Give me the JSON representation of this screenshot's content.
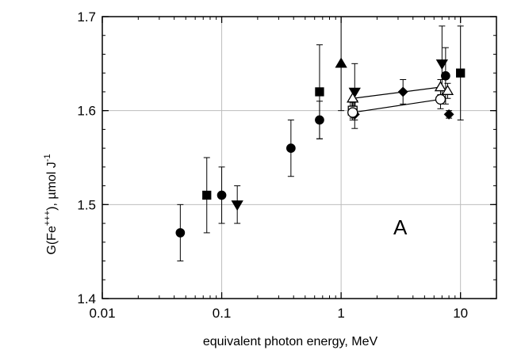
{
  "chart_data": {
    "type": "scatter",
    "title": "",
    "panel_label": "A",
    "xlabel": "equivalent photon energy,  MeV",
    "ylabel": {
      "prefix": "G(Fe",
      "sup": "+++",
      "mid": "), µmol J",
      "sup2": "-1"
    },
    "x_scale": "log",
    "xlim": [
      0.01,
      20
    ],
    "ylim": [
      1.4,
      1.7
    ],
    "x_ticks": [
      0.01,
      0.1,
      1,
      10
    ],
    "x_tick_labels": [
      "0.01",
      "0.1",
      "1",
      "10"
    ],
    "y_ticks": [
      1.4,
      1.5,
      1.6,
      1.7
    ],
    "y_tick_labels": [
      "1.4",
      "1.5",
      "1.6",
      "1.7"
    ],
    "grid": true,
    "series": [
      {
        "marker": "circle-filled",
        "points": [
          {
            "x": 0.045,
            "y": 1.47,
            "err": 0.03
          },
          {
            "x": 0.1,
            "y": 1.51,
            "err": 0.03
          },
          {
            "x": 0.38,
            "y": 1.56,
            "err": 0.03
          },
          {
            "x": 0.66,
            "y": 1.59,
            "err": 0.02
          },
          {
            "x": 7.5,
            "y": 1.637,
            "err": 0.03
          }
        ]
      },
      {
        "marker": "square-filled",
        "points": [
          {
            "x": 0.075,
            "y": 1.51,
            "err": 0.04
          },
          {
            "x": 0.66,
            "y": 1.62,
            "err": 0.05
          },
          {
            "x": 10,
            "y": 1.64,
            "err": 0.05
          }
        ]
      },
      {
        "marker": "triangle-up-filled",
        "points": [
          {
            "x": 1.0,
            "y": 1.65,
            "err": 0.05
          }
        ]
      },
      {
        "marker": "triangle-down-filled",
        "points": [
          {
            "x": 0.135,
            "y": 1.5,
            "err": 0.02
          },
          {
            "x": 1.3,
            "y": 1.62,
            "err": 0.03
          },
          {
            "x": 7.0,
            "y": 1.65,
            "err": 0.04
          }
        ]
      },
      {
        "marker": "diamond-filled",
        "points": [
          {
            "x": 1.3,
            "y": 1.596,
            "err": 0.015
          },
          {
            "x": 3.3,
            "y": 1.62,
            "err": 0.013
          },
          {
            "x": 8.0,
            "y": 1.596,
            "err": 0.004
          }
        ]
      },
      {
        "marker": "triangle-up-open",
        "line": true,
        "points": [
          {
            "x": 1.25,
            "y": 1.613,
            "err": 0.01
          },
          {
            "x": 6.8,
            "y": 1.625,
            "err": 0.008
          },
          {
            "x": 7.8,
            "y": 1.621,
            "err": 0.008
          }
        ]
      },
      {
        "marker": "square-open",
        "points": [
          {
            "x": 1.25,
            "y": 1.6,
            "err": 0.008
          }
        ]
      },
      {
        "marker": "circle-open",
        "line": true,
        "points": [
          {
            "x": 1.25,
            "y": 1.598,
            "err": 0.008
          },
          {
            "x": 6.8,
            "y": 1.612,
            "err": 0.01
          }
        ]
      }
    ]
  }
}
